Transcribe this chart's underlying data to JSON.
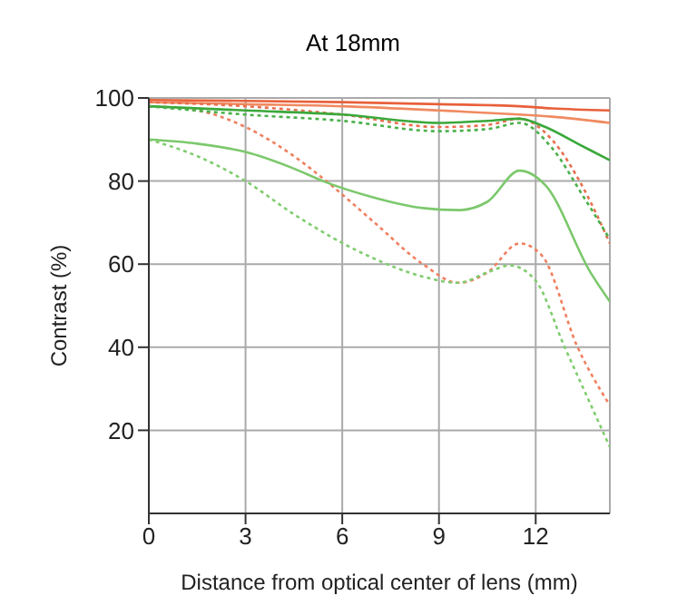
{
  "chart_data": {
    "type": "line",
    "title": "At 18mm",
    "xlabel": "Distance from optical center of lens (mm)",
    "ylabel": "Contrast (%)",
    "xlim": [
      0,
      14.3
    ],
    "xticks": [
      0,
      3,
      6,
      9,
      12
    ],
    "ylim": [
      0,
      100
    ],
    "yticks": [
      20,
      40,
      60,
      80,
      100
    ],
    "grid": true,
    "legend": false,
    "marker": "none",
    "series": [
      {
        "color": "#e8603a",
        "line_style": "solid",
        "x": [
          0,
          3,
          6,
          9,
          11.5,
          12.5,
          14.3
        ],
        "values": [
          99.5,
          99.3,
          99,
          98.5,
          98,
          97.5,
          97
        ]
      },
      {
        "color": "#f08a60",
        "line_style": "solid",
        "x": [
          0,
          3,
          6,
          9,
          11.5,
          12.5,
          14.3
        ],
        "values": [
          99,
          98.5,
          98,
          97,
          96,
          95.5,
          94
        ]
      },
      {
        "color": "#e87050",
        "line_style": "dotted",
        "x": [
          0,
          3,
          6,
          9,
          10.5,
          11.5,
          12.5,
          13.5,
          14.3
        ],
        "values": [
          99,
          98,
          96,
          93,
          93.5,
          95,
          90,
          78,
          65
        ]
      },
      {
        "color": "#f08060",
        "line_style": "dotted",
        "x": [
          0,
          1.5,
          3,
          4.5,
          5.5,
          7,
          8.5,
          9.6,
          10.5,
          11.5,
          12.2,
          13.3,
          14.3
        ],
        "values": [
          98,
          97,
          93,
          86,
          80,
          70,
          60,
          55.5,
          58,
          65,
          62,
          40,
          26
        ]
      },
      {
        "color": "#3aa83a",
        "line_style": "solid",
        "x": [
          0,
          3,
          6,
          9,
          10.5,
          11.5,
          12.3,
          13.3,
          14.3
        ],
        "values": [
          98,
          97,
          96,
          94,
          94.5,
          95,
          93,
          89,
          85
        ]
      },
      {
        "color": "#7cc86c",
        "line_style": "solid",
        "x": [
          0,
          1.5,
          3,
          4.5,
          5.4,
          7,
          8.5,
          9.6,
          10.5,
          11.5,
          12.3,
          13.7,
          14.3
        ],
        "values": [
          90,
          89,
          87,
          83,
          80,
          76,
          73.5,
          73,
          75,
          82.5,
          79,
          58,
          51
        ]
      },
      {
        "color": "#4ab04a",
        "line_style": "dotted",
        "x": [
          0,
          3,
          6,
          9,
          10.5,
          11.5,
          12.5,
          13.5,
          14.3
        ],
        "values": [
          98,
          96,
          94.5,
          92,
          92.5,
          94,
          88,
          76,
          66
        ]
      },
      {
        "color": "#80cc70",
        "line_style": "dotted",
        "x": [
          0,
          1.5,
          3,
          4.5,
          6.8,
          8.5,
          9.6,
          10.5,
          11.2,
          12,
          12.9,
          13.6,
          14.3
        ],
        "values": [
          90,
          86,
          80,
          72,
          62,
          57,
          55.5,
          58,
          59.7,
          56,
          40,
          28,
          16
        ]
      }
    ]
  }
}
